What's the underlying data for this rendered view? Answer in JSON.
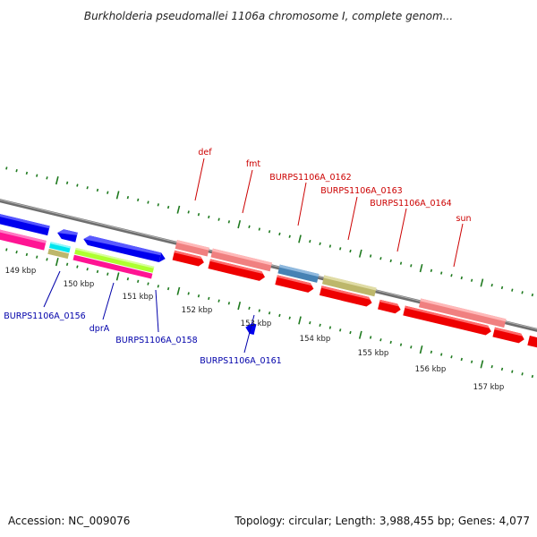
{
  "title": "Burkholderia pseudomallei 1106a chromosome I, complete genom...",
  "footer": {
    "accession": "Accession: NC_009076",
    "summary": "Topology: circular; Length: 3,988,455 bp; Genes: 4,077"
  },
  "colors": {
    "backbone": "#808080",
    "ticks": "#1f7a1f",
    "label_forward": "#cc0000",
    "label_reverse": "#0000aa"
  },
  "scale_labels": [
    "149 kbp",
    "150 kbp",
    "151 kbp",
    "152 kbp",
    "153 kbp",
    "154 kbp",
    "155 kbp",
    "156 kbp",
    "157 kbp"
  ],
  "forward_labels": [
    "def",
    "fmt",
    "BURPS1106A_0162",
    "BURPS1106A_0163",
    "BURPS1106A_0164",
    "sun"
  ],
  "reverse_labels": [
    "BURPS1106A_0156",
    "dprA",
    "BURPS1106A_0158",
    "BURPS1106A_0161"
  ]
}
